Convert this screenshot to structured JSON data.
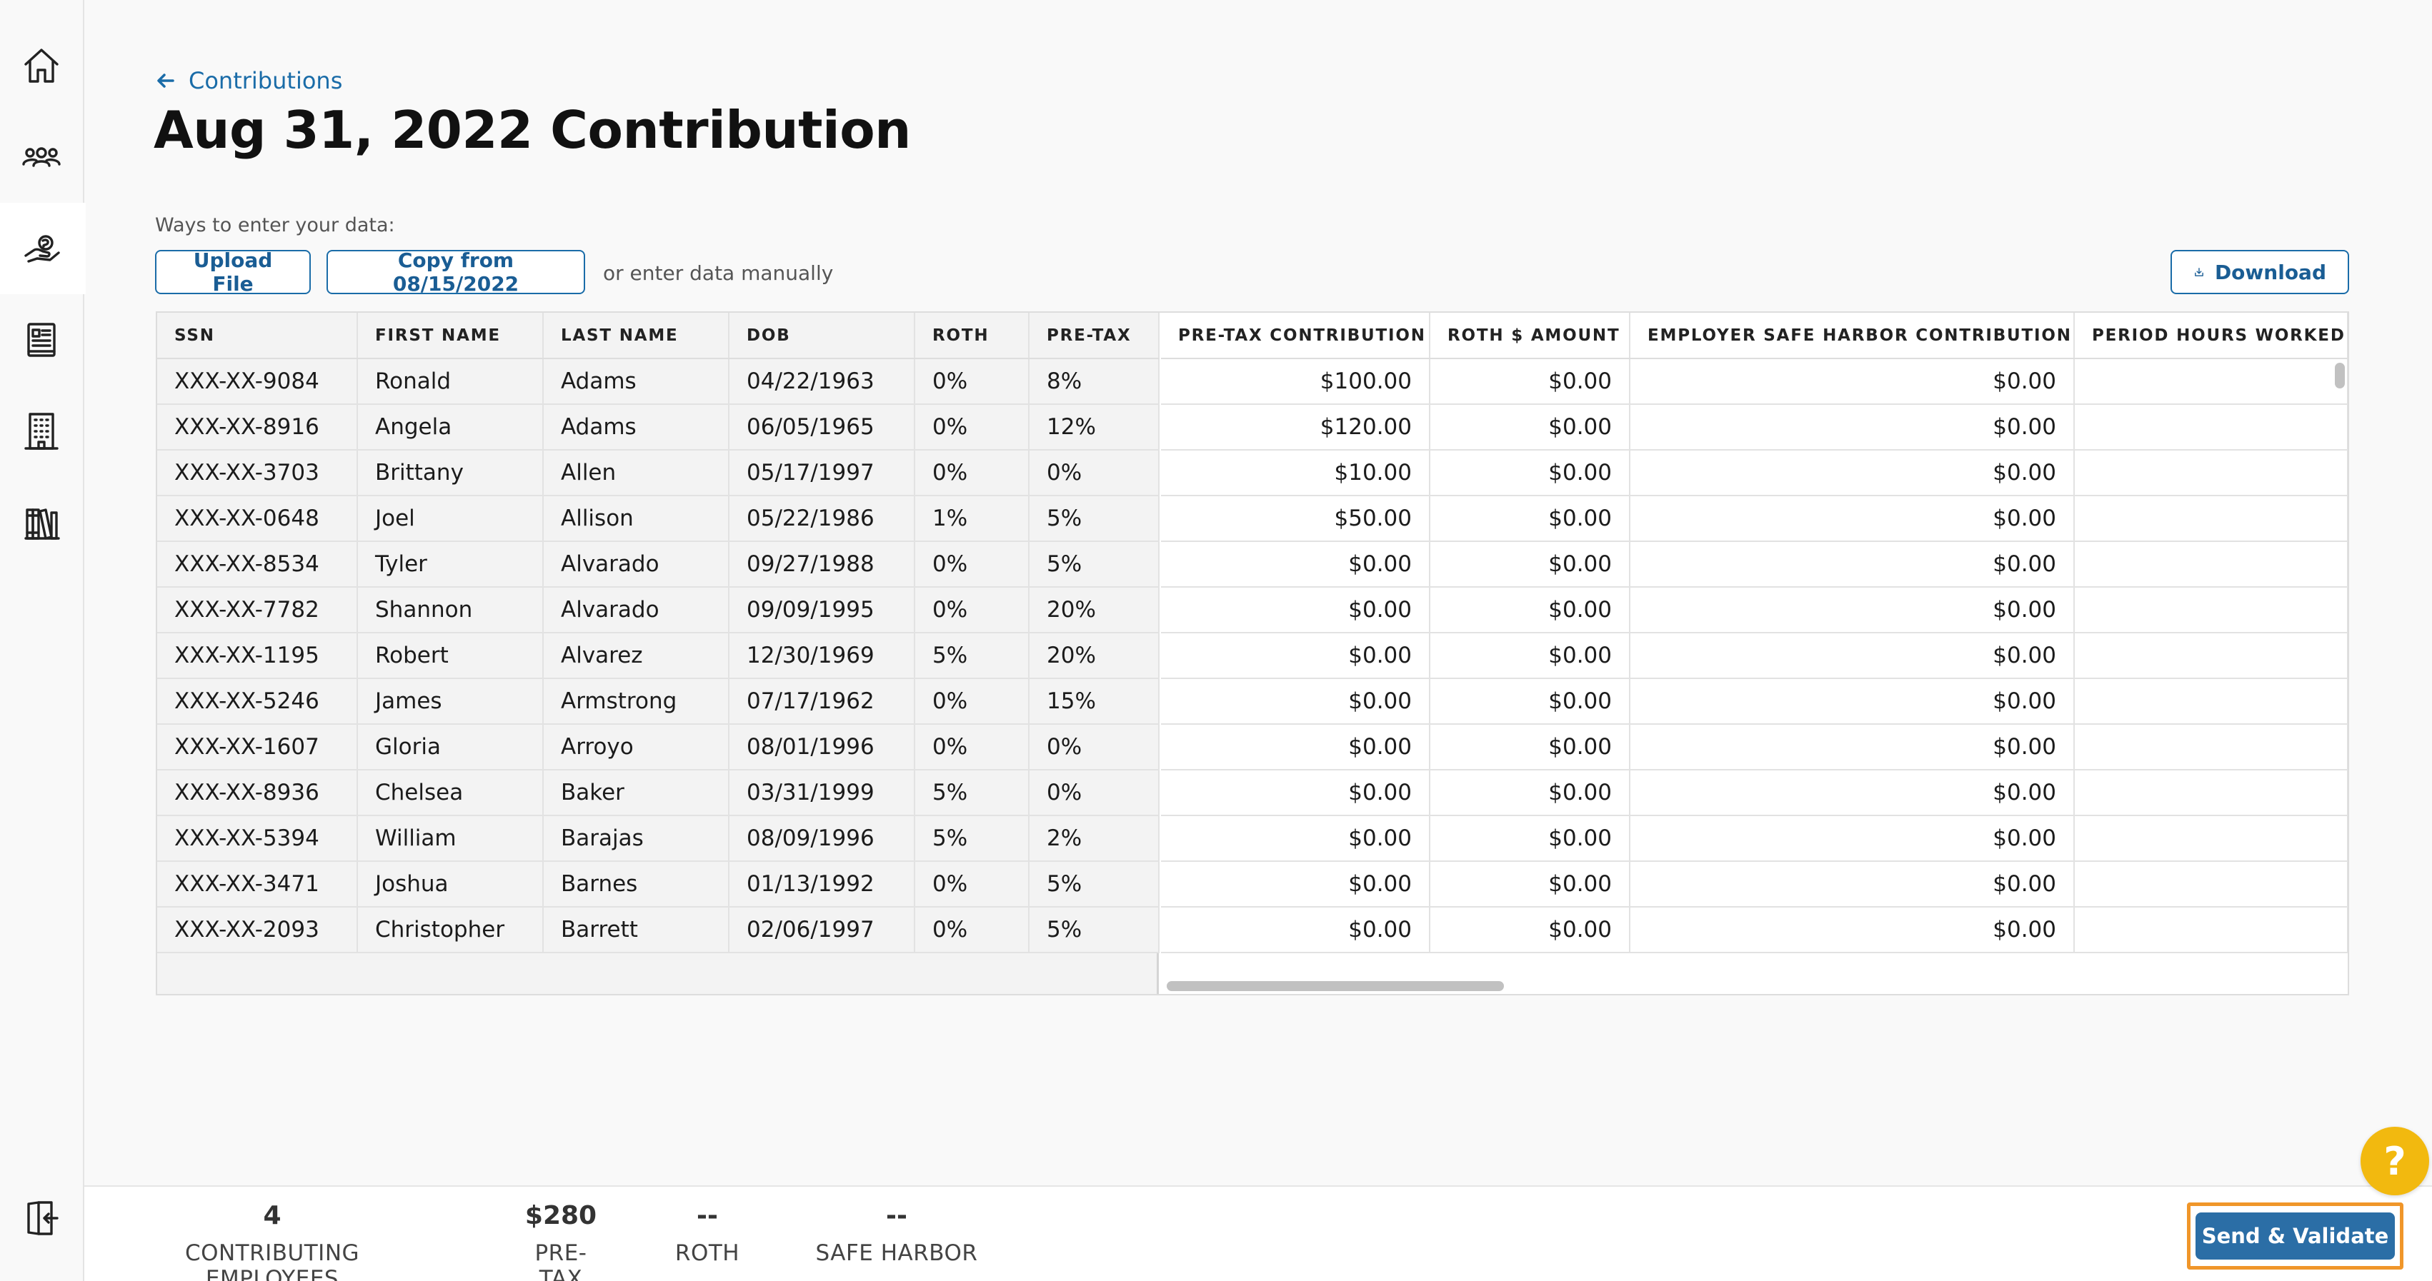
{
  "breadcrumb": {
    "back_label": "Contributions"
  },
  "page": {
    "title": "Aug 31, 2022 Contribution"
  },
  "data_entry": {
    "ways_label": "Ways to enter your data:",
    "upload_label": "Upload File",
    "copy_label": "Copy from 08/15/2022",
    "manual_text": "or enter data manually",
    "download_label": "Download"
  },
  "table": {
    "frozen_headers": [
      "SSN",
      "FIRST NAME",
      "LAST NAME",
      "DOB",
      "ROTH",
      "PRE-TAX"
    ],
    "scroll_headers": [
      "PRE-TAX CONTRIBUTION",
      "ROTH $ AMOUNT",
      "EMPLOYER SAFE HARBOR CONTRIBUTION",
      "PERIOD HOURS WORKED"
    ],
    "rows": [
      [
        "XXX-XX-9084",
        "Ronald",
        "Adams",
        "04/22/1963",
        "0%",
        "8%",
        "$100.00",
        "$0.00",
        "$0.00",
        ""
      ],
      [
        "XXX-XX-8916",
        "Angela",
        "Adams",
        "06/05/1965",
        "0%",
        "12%",
        "$120.00",
        "$0.00",
        "$0.00",
        ""
      ],
      [
        "XXX-XX-3703",
        "Brittany",
        "Allen",
        "05/17/1997",
        "0%",
        "0%",
        "$10.00",
        "$0.00",
        "$0.00",
        ""
      ],
      [
        "XXX-XX-0648",
        "Joel",
        "Allison",
        "05/22/1986",
        "1%",
        "5%",
        "$50.00",
        "$0.00",
        "$0.00",
        ""
      ],
      [
        "XXX-XX-8534",
        "Tyler",
        "Alvarado",
        "09/27/1988",
        "0%",
        "5%",
        "$0.00",
        "$0.00",
        "$0.00",
        ""
      ],
      [
        "XXX-XX-7782",
        "Shannon",
        "Alvarado",
        "09/09/1995",
        "0%",
        "20%",
        "$0.00",
        "$0.00",
        "$0.00",
        ""
      ],
      [
        "XXX-XX-1195",
        "Robert",
        "Alvarez",
        "12/30/1969",
        "5%",
        "20%",
        "$0.00",
        "$0.00",
        "$0.00",
        ""
      ],
      [
        "XXX-XX-5246",
        "James",
        "Armstrong",
        "07/17/1962",
        "0%",
        "15%",
        "$0.00",
        "$0.00",
        "$0.00",
        ""
      ],
      [
        "XXX-XX-1607",
        "Gloria",
        "Arroyo",
        "08/01/1996",
        "0%",
        "0%",
        "$0.00",
        "$0.00",
        "$0.00",
        ""
      ],
      [
        "XXX-XX-8936",
        "Chelsea",
        "Baker",
        "03/31/1999",
        "5%",
        "0%",
        "$0.00",
        "$0.00",
        "$0.00",
        ""
      ],
      [
        "XXX-XX-5394",
        "William",
        "Barajas",
        "08/09/1996",
        "5%",
        "2%",
        "$0.00",
        "$0.00",
        "$0.00",
        ""
      ],
      [
        "XXX-XX-3471",
        "Joshua",
        "Barnes",
        "01/13/1992",
        "0%",
        "5%",
        "$0.00",
        "$0.00",
        "$0.00",
        ""
      ],
      [
        "XXX-XX-2093",
        "Christopher",
        "Barrett",
        "02/06/1997",
        "0%",
        "5%",
        "$0.00",
        "$0.00",
        "$0.00",
        ""
      ]
    ]
  },
  "summary": [
    {
      "value": "4",
      "label": "CONTRIBUTING EMPLOYEES"
    },
    {
      "value": "$280",
      "label": "PRE-TAX"
    },
    {
      "value": "--",
      "label": "ROTH"
    },
    {
      "value": "--",
      "label": "SAFE HARBOR"
    }
  ],
  "actions": {
    "send_label": "Send & Validate",
    "help_label": "?"
  },
  "sidebar": {
    "items": [
      {
        "icon": "home-icon"
      },
      {
        "icon": "people-icon"
      },
      {
        "icon": "hand-coins-icon",
        "active": true
      },
      {
        "icon": "document-icon"
      },
      {
        "icon": "building-icon"
      },
      {
        "icon": "library-icon"
      },
      {
        "icon": "logout-icon"
      }
    ]
  },
  "colors": {
    "accent": "#1a6ca8",
    "primary_button": "#2b6ea6",
    "highlight": "#f0962a",
    "help": "#f2b90f"
  }
}
